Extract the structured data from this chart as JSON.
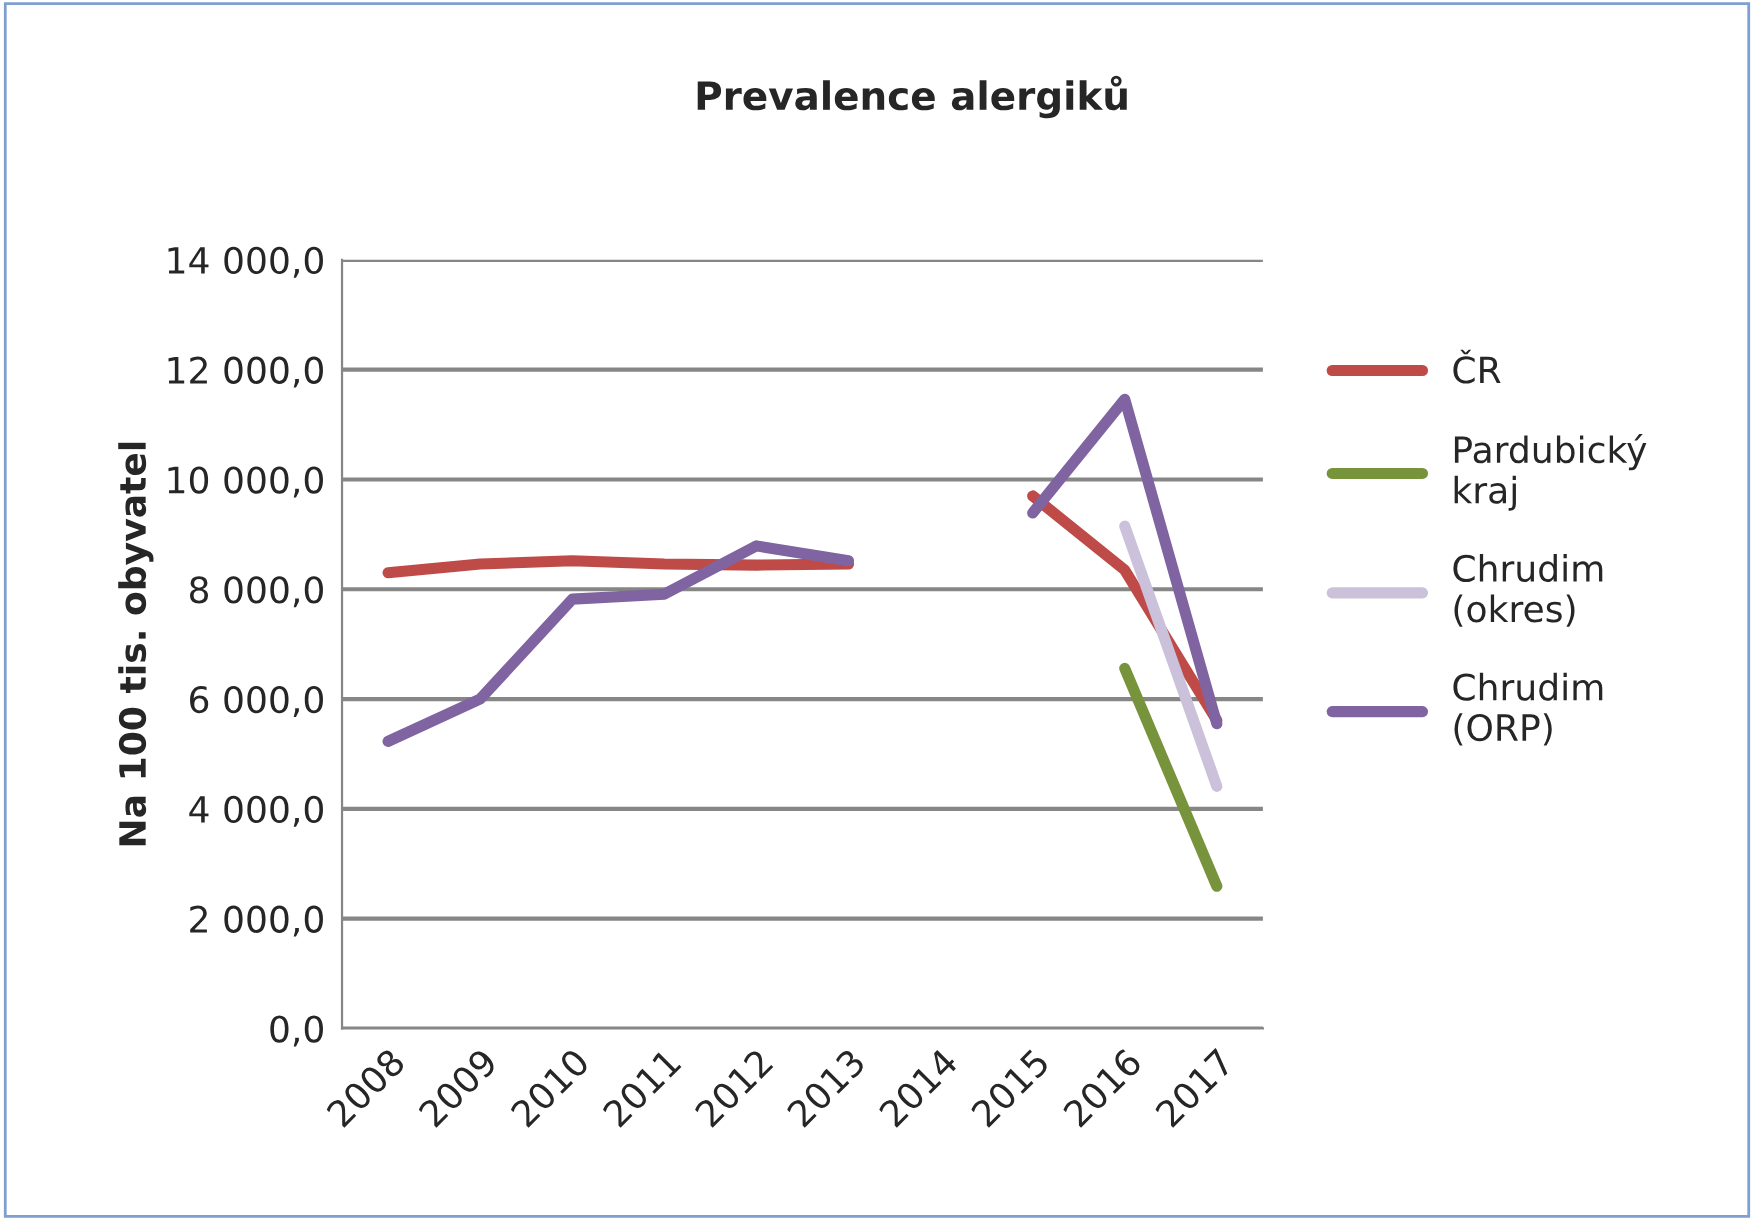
{
  "chart_data": {
    "type": "line",
    "title": "Prevalence alergiků",
    "ylabel": "Na 100 tis. obyvatel",
    "categories": [
      "2008",
      "2009",
      "2010",
      "2011",
      "2012",
      "2013",
      "2014",
      "2015",
      "2016",
      "2017"
    ],
    "series": [
      {
        "name": "ČR",
        "color": "#be4b48",
        "values": [
          8300,
          8460,
          8520,
          8460,
          8440,
          8460,
          null,
          9700,
          8350,
          5610
        ]
      },
      {
        "name": "Pardubický kraj",
        "color": "#77933c",
        "values": [
          null,
          null,
          null,
          null,
          null,
          null,
          null,
          null,
          6560,
          2590
        ]
      },
      {
        "name": "Chrudim (okres)",
        "color": "#ccc1da",
        "values": [
          null,
          null,
          null,
          null,
          null,
          null,
          null,
          null,
          9150,
          4410
        ]
      },
      {
        "name": "Chrudim (ORP)",
        "color": "#8064a2",
        "values": [
          5230,
          6000,
          7820,
          7910,
          8790,
          8520,
          null,
          9390,
          11460,
          5550
        ]
      }
    ],
    "ylim": [
      0,
      14000
    ],
    "yticks": [
      {
        "value": 0,
        "label": "0,0"
      },
      {
        "value": 2000,
        "label": "2 000,0"
      },
      {
        "value": 4000,
        "label": "4 000,0"
      },
      {
        "value": 6000,
        "label": "6 000,0"
      },
      {
        "value": 8000,
        "label": "8 000,0"
      },
      {
        "value": 10000,
        "label": "10 000,0"
      },
      {
        "value": 12000,
        "label": "12 000,0"
      },
      {
        "value": 14000,
        "label": "14 000,0"
      }
    ],
    "grid": "y",
    "legend": "right",
    "marker": "none",
    "line_style": "solid"
  }
}
